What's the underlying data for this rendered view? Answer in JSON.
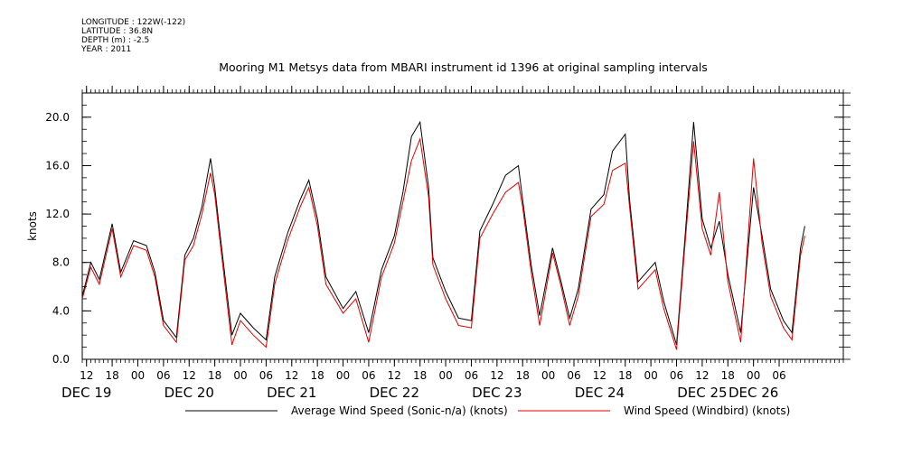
{
  "header": {
    "longitude": "LONGITUDE : 122W(-122)",
    "latitude": "LATITUDE : 36.8N",
    "depth": "DEPTH (m) : -2.5",
    "year": "YEAR : 2011"
  },
  "chart_data": {
    "type": "line",
    "title": "Mooring M1 Metsys data from MBARI instrument id 1396 at original sampling intervals",
    "ylabel": "knots",
    "xlabel": "",
    "ylim": [
      0.0,
      22.0
    ],
    "y_ticks": [
      "0.0",
      "4.0",
      "8.0",
      "12.0",
      "16.0",
      "20.0"
    ],
    "x_range_hours": [
      "2011-12-19T11:00",
      "2011-12-26T21:00"
    ],
    "x_hour_ticks": [
      {
        "t": "2011-12-19T12:00",
        "label": "12"
      },
      {
        "t": "2011-12-19T18:00",
        "label": "18"
      },
      {
        "t": "2011-12-20T00:00",
        "label": "00"
      },
      {
        "t": "2011-12-20T06:00",
        "label": "06"
      },
      {
        "t": "2011-12-20T12:00",
        "label": "12"
      },
      {
        "t": "2011-12-20T18:00",
        "label": "18"
      },
      {
        "t": "2011-12-21T00:00",
        "label": "00"
      },
      {
        "t": "2011-12-21T06:00",
        "label": "06"
      },
      {
        "t": "2011-12-21T12:00",
        "label": "12"
      },
      {
        "t": "2011-12-21T18:00",
        "label": "18"
      },
      {
        "t": "2011-12-22T00:00",
        "label": "00"
      },
      {
        "t": "2011-12-22T06:00",
        "label": "06"
      },
      {
        "t": "2011-12-22T12:00",
        "label": "12"
      },
      {
        "t": "2011-12-22T18:00",
        "label": "18"
      },
      {
        "t": "2011-12-23T00:00",
        "label": "00"
      },
      {
        "t": "2011-12-23T06:00",
        "label": "06"
      },
      {
        "t": "2011-12-23T12:00",
        "label": "12"
      },
      {
        "t": "2011-12-23T18:00",
        "label": "18"
      },
      {
        "t": "2011-12-24T00:00",
        "label": "00"
      },
      {
        "t": "2011-12-24T06:00",
        "label": "06"
      },
      {
        "t": "2011-12-24T12:00",
        "label": "12"
      },
      {
        "t": "2011-12-24T18:00",
        "label": "18"
      },
      {
        "t": "2011-12-25T00:00",
        "label": "00"
      },
      {
        "t": "2011-12-25T06:00",
        "label": "06"
      },
      {
        "t": "2011-12-25T12:00",
        "label": "12"
      },
      {
        "t": "2011-12-25T18:00",
        "label": "18"
      },
      {
        "t": "2011-12-26T00:00",
        "label": "00"
      },
      {
        "t": "2011-12-26T06:00",
        "label": "06"
      }
    ],
    "x_day_labels": [
      {
        "t": "2011-12-19T12:00",
        "label": "DEC 19"
      },
      {
        "t": "2011-12-20T12:00",
        "label": "DEC 20"
      },
      {
        "t": "2011-12-21T12:00",
        "label": "DEC 21"
      },
      {
        "t": "2011-12-22T12:00",
        "label": "DEC 22"
      },
      {
        "t": "2011-12-23T12:00",
        "label": "DEC 23"
      },
      {
        "t": "2011-12-24T12:00",
        "label": "DEC 24"
      },
      {
        "t": "2011-12-25T12:00",
        "label": "DEC 25"
      },
      {
        "t": "2011-12-26T00:00",
        "label": "DEC 26"
      }
    ],
    "series": [
      {
        "name": "Average Wind Speed (Sonic-n/a) (knots)",
        "color": "#000000",
        "points": [
          [
            "2011-12-19T11:00",
            5.2
          ],
          [
            "2011-12-19T13:00",
            8.0
          ],
          [
            "2011-12-19T15:00",
            6.6
          ],
          [
            "2011-12-19T18:00",
            11.2
          ],
          [
            "2011-12-19T20:00",
            7.2
          ],
          [
            "2011-12-19T23:00",
            9.8
          ],
          [
            "2011-12-20T02:00",
            9.4
          ],
          [
            "2011-12-20T04:00",
            7.2
          ],
          [
            "2011-12-20T06:00",
            3.2
          ],
          [
            "2011-12-20T09:00",
            1.8
          ],
          [
            "2011-12-20T11:00",
            8.6
          ],
          [
            "2011-12-20T13:00",
            10.0
          ],
          [
            "2011-12-20T15:00",
            12.6
          ],
          [
            "2011-12-20T17:00",
            16.6
          ],
          [
            "2011-12-20T18:00",
            14.2
          ],
          [
            "2011-12-20T19:00",
            11.0
          ],
          [
            "2011-12-20T22:00",
            2.0
          ],
          [
            "2011-12-21T00:00",
            3.8
          ],
          [
            "2011-12-21T03:00",
            2.6
          ],
          [
            "2011-12-21T06:00",
            1.6
          ],
          [
            "2011-12-21T08:00",
            6.8
          ],
          [
            "2011-12-21T11:00",
            10.4
          ],
          [
            "2011-12-21T14:00",
            13.2
          ],
          [
            "2011-12-21T16:00",
            14.8
          ],
          [
            "2011-12-21T18:00",
            11.6
          ],
          [
            "2011-12-21T20:00",
            6.8
          ],
          [
            "2011-12-22T00:00",
            4.2
          ],
          [
            "2011-12-22T03:00",
            5.6
          ],
          [
            "2011-12-22T06:00",
            2.2
          ],
          [
            "2011-12-22T09:00",
            7.4
          ],
          [
            "2011-12-22T12:00",
            10.2
          ],
          [
            "2011-12-22T14:00",
            13.8
          ],
          [
            "2011-12-22T16:00",
            18.4
          ],
          [
            "2011-12-22T18:00",
            19.6
          ],
          [
            "2011-12-22T20:00",
            14.2
          ],
          [
            "2011-12-22T21:00",
            8.4
          ],
          [
            "2011-12-23T00:00",
            5.6
          ],
          [
            "2011-12-23T03:00",
            3.4
          ],
          [
            "2011-12-23T06:00",
            3.2
          ],
          [
            "2011-12-23T08:00",
            10.6
          ],
          [
            "2011-12-23T11:00",
            12.8
          ],
          [
            "2011-12-23T14:00",
            15.2
          ],
          [
            "2011-12-23T17:00",
            16.0
          ],
          [
            "2011-12-23T18:00",
            13.2
          ],
          [
            "2011-12-23T20:00",
            7.8
          ],
          [
            "2011-12-23T22:00",
            3.6
          ],
          [
            "2011-12-24T01:00",
            9.2
          ],
          [
            "2011-12-24T03:00",
            6.4
          ],
          [
            "2011-12-24T05:00",
            3.4
          ],
          [
            "2011-12-24T07:00",
            5.8
          ],
          [
            "2011-12-24T10:00",
            12.4
          ],
          [
            "2011-12-24T13:00",
            13.6
          ],
          [
            "2011-12-24T15:00",
            17.2
          ],
          [
            "2011-12-24T18:00",
            18.6
          ],
          [
            "2011-12-24T19:00",
            13.2
          ],
          [
            "2011-12-24T21:00",
            6.4
          ],
          [
            "2011-12-25T01:00",
            8.0
          ],
          [
            "2011-12-25T03:00",
            4.8
          ],
          [
            "2011-12-25T06:00",
            1.2
          ],
          [
            "2011-12-25T08:00",
            10.2
          ],
          [
            "2011-12-25T10:00",
            19.6
          ],
          [
            "2011-12-25T12:00",
            11.6
          ],
          [
            "2011-12-25T14:00",
            9.2
          ],
          [
            "2011-12-25T16:00",
            11.4
          ],
          [
            "2011-12-25T18:00",
            7.0
          ],
          [
            "2011-12-25T21:00",
            2.2
          ],
          [
            "2011-12-26T00:00",
            14.2
          ],
          [
            "2011-12-26T02:00",
            10.2
          ],
          [
            "2011-12-26T04:00",
            5.8
          ],
          [
            "2011-12-26T07:00",
            3.2
          ],
          [
            "2011-12-26T09:00",
            2.2
          ],
          [
            "2011-12-26T11:00",
            9.2
          ],
          [
            "2011-12-26T12:00",
            11.0
          ]
        ]
      },
      {
        "name": "Wind Speed (Windbird) (knots)",
        "color": "#e00000",
        "points": [
          [
            "2011-12-19T11:00",
            5.0
          ],
          [
            "2011-12-19T13:00",
            7.6
          ],
          [
            "2011-12-19T15:00",
            6.2
          ],
          [
            "2011-12-19T18:00",
            10.8
          ],
          [
            "2011-12-19T20:00",
            6.8
          ],
          [
            "2011-12-19T23:00",
            9.4
          ],
          [
            "2011-12-20T02:00",
            9.0
          ],
          [
            "2011-12-20T04:00",
            6.8
          ],
          [
            "2011-12-20T06:00",
            2.8
          ],
          [
            "2011-12-20T09:00",
            1.4
          ],
          [
            "2011-12-20T11:00",
            8.2
          ],
          [
            "2011-12-20T13:00",
            9.4
          ],
          [
            "2011-12-20T15:00",
            12.0
          ],
          [
            "2011-12-20T17:00",
            15.4
          ],
          [
            "2011-12-20T18:00",
            13.6
          ],
          [
            "2011-12-20T19:00",
            10.4
          ],
          [
            "2011-12-20T22:00",
            1.2
          ],
          [
            "2011-12-21T00:00",
            3.2
          ],
          [
            "2011-12-21T03:00",
            2.0
          ],
          [
            "2011-12-21T06:00",
            1.0
          ],
          [
            "2011-12-21T08:00",
            6.2
          ],
          [
            "2011-12-21T11:00",
            9.8
          ],
          [
            "2011-12-21T14:00",
            12.6
          ],
          [
            "2011-12-21T16:00",
            14.2
          ],
          [
            "2011-12-21T18:00",
            11.0
          ],
          [
            "2011-12-21T20:00",
            6.2
          ],
          [
            "2011-12-22T00:00",
            3.8
          ],
          [
            "2011-12-22T03:00",
            5.0
          ],
          [
            "2011-12-22T06:00",
            1.4
          ],
          [
            "2011-12-22T09:00",
            6.8
          ],
          [
            "2011-12-22T12:00",
            9.6
          ],
          [
            "2011-12-22T14:00",
            13.0
          ],
          [
            "2011-12-22T16:00",
            16.4
          ],
          [
            "2011-12-22T18:00",
            18.2
          ],
          [
            "2011-12-22T20:00",
            13.4
          ],
          [
            "2011-12-22T21:00",
            7.8
          ],
          [
            "2011-12-23T00:00",
            5.0
          ],
          [
            "2011-12-23T03:00",
            2.8
          ],
          [
            "2011-12-23T06:00",
            2.6
          ],
          [
            "2011-12-23T08:00",
            10.0
          ],
          [
            "2011-12-23T11:00",
            12.0
          ],
          [
            "2011-12-23T14:00",
            13.8
          ],
          [
            "2011-12-23T17:00",
            14.6
          ],
          [
            "2011-12-23T18:00",
            12.6
          ],
          [
            "2011-12-23T20:00",
            7.2
          ],
          [
            "2011-12-23T22:00",
            2.8
          ],
          [
            "2011-12-24T01:00",
            8.8
          ],
          [
            "2011-12-24T03:00",
            6.0
          ],
          [
            "2011-12-24T05:00",
            2.8
          ],
          [
            "2011-12-24T07:00",
            5.2
          ],
          [
            "2011-12-24T10:00",
            11.8
          ],
          [
            "2011-12-24T13:00",
            12.8
          ],
          [
            "2011-12-24T15:00",
            15.6
          ],
          [
            "2011-12-24T18:00",
            16.2
          ],
          [
            "2011-12-24T19:00",
            12.6
          ],
          [
            "2011-12-24T21:00",
            5.8
          ],
          [
            "2011-12-25T01:00",
            7.4
          ],
          [
            "2011-12-25T03:00",
            4.2
          ],
          [
            "2011-12-25T06:00",
            0.8
          ],
          [
            "2011-12-25T08:00",
            9.6
          ],
          [
            "2011-12-25T10:00",
            18.0
          ],
          [
            "2011-12-25T12:00",
            10.8
          ],
          [
            "2011-12-25T14:00",
            8.6
          ],
          [
            "2011-12-25T16:00",
            13.8
          ],
          [
            "2011-12-25T18:00",
            6.4
          ],
          [
            "2011-12-25T21:00",
            1.4
          ],
          [
            "2011-12-26T00:00",
            16.6
          ],
          [
            "2011-12-26T02:00",
            9.6
          ],
          [
            "2011-12-26T04:00",
            5.2
          ],
          [
            "2011-12-26T07:00",
            2.6
          ],
          [
            "2011-12-26T09:00",
            1.6
          ],
          [
            "2011-12-26T11:00",
            8.6
          ],
          [
            "2011-12-26T12:00",
            10.2
          ]
        ]
      }
    ],
    "legend_placement": "bottom",
    "grid": false
  }
}
